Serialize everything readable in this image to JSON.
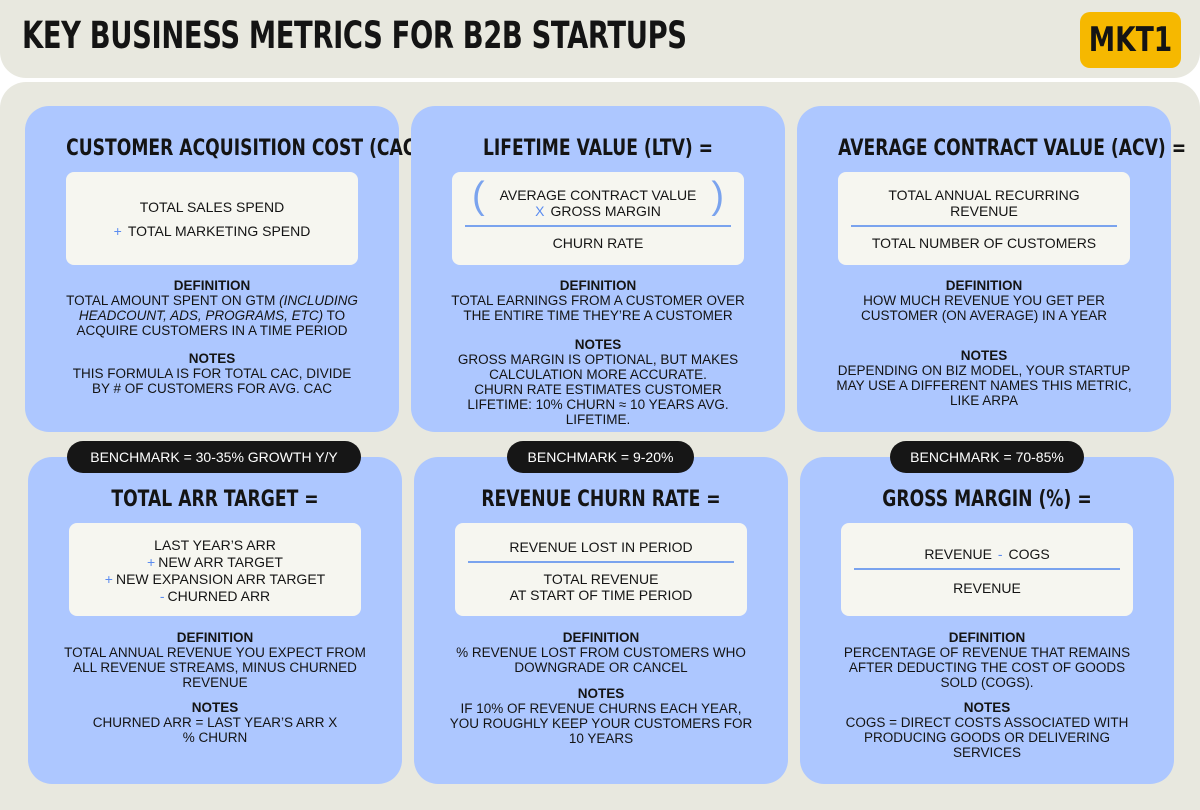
{
  "header": {
    "title": "KEY BUSINESS METRICS FOR B2B STARTUPS",
    "brand": "MKT1"
  },
  "colors": {
    "background": "#e8e8df",
    "card": "#adc7ff",
    "formula_box": "#f6f6f0",
    "accent_operator": "#5b8cf0",
    "brand_badge": "#f6b800",
    "benchmark_pill": "#161616"
  },
  "cards": [
    {
      "title": "CUSTOMER ACQUISITION COST (CAC) =",
      "formula": [
        "TOTAL SALES SPEND",
        "TOTAL MARKETING SPEND"
      ],
      "formula_op": "+",
      "definition_label": "DEFINITION",
      "definition_lines": [
        "TOTAL AMOUNT SPENT ON GTM",
        "(INCLUDING",
        "HEADCOUNT, ADS, PROGRAMS, ETC)",
        "TO",
        "ACQUIRE CUSTOMERS IN A TIME PERIOD"
      ],
      "notes_label": "NOTES",
      "notes_lines": [
        "THIS FORMULA IS FOR TOTAL CAC, DIVIDE",
        "BY # OF CUSTOMERS FOR AVG. CAC"
      ]
    },
    {
      "title": "LIFETIME VALUE (LTV) =",
      "numerator": [
        "AVERAGE CONTRACT VALUE",
        "GROSS MARGIN"
      ],
      "numerator_op": "X",
      "paren_left": "(",
      "paren_right": ")",
      "denominator": "CHURN RATE",
      "definition_label": "DEFINITION",
      "definition_lines": [
        "TOTAL EARNINGS FROM A CUSTOMER OVER",
        "THE ENTIRE TIME THEY’RE A CUSTOMER"
      ],
      "notes_label": "NOTES",
      "notes_lines": [
        "GROSS MARGIN IS OPTIONAL, BUT MAKES",
        "CALCULATION MORE ACCURATE.",
        "CHURN RATE ESTIMATES CUSTOMER",
        "LIFETIME: 10% CHURN ≈ 10 YEARS AVG.",
        "LIFETIME."
      ]
    },
    {
      "title": "AVERAGE CONTRACT VALUE (ACV) =",
      "numerator": [
        "TOTAL ANNUAL RECURRING",
        "REVENUE"
      ],
      "denominator": "TOTAL NUMBER OF CUSTOMERS",
      "definition_label": "DEFINITION",
      "definition_lines": [
        "HOW MUCH REVENUE YOU GET PER",
        "CUSTOMER (ON AVERAGE) IN A YEAR"
      ],
      "notes_label": "NOTES",
      "notes_lines": [
        "DEPENDING ON BIZ MODEL, YOUR STARTUP",
        "MAY USE A DIFFERENT NAMES THIS METRIC,",
        "LIKE ARPA"
      ]
    },
    {
      "title": "TOTAL ARR TARGET =",
      "formula": [
        "LAST YEAR’S ARR",
        "NEW ARR TARGET",
        "NEW EXPANSION ARR TARGET",
        "CHURNED ARR"
      ],
      "formula_ops": [
        "",
        "+",
        "+",
        "-"
      ],
      "definition_label": "DEFINITION",
      "definition_lines": [
        "TOTAL ANNUAL REVENUE YOU EXPECT FROM",
        "ALL REVENUE STREAMS, MINUS CHURNED",
        "REVENUE"
      ],
      "notes_label": "NOTES",
      "notes_lines": [
        "CHURNED ARR = LAST YEAR’S ARR X",
        "% CHURN"
      ]
    },
    {
      "title": "REVENUE CHURN RATE =",
      "numerator": [
        "REVENUE LOST IN PERIOD"
      ],
      "denominator_lines": [
        "TOTAL REVENUE",
        "AT START OF TIME PERIOD"
      ],
      "definition_label": "DEFINITION",
      "definition_lines": [
        "% REVENUE LOST FROM CUSTOMERS WHO",
        "DOWNGRADE OR CANCEL"
      ],
      "notes_label": "NOTES",
      "notes_lines": [
        "IF 10% OF REVENUE CHURNS EACH YEAR,",
        "YOU ROUGHLY KEEP YOUR CUSTOMERS FOR",
        "10 YEARS"
      ]
    },
    {
      "title": "GROSS MARGIN (%) =",
      "numerator_parts": [
        "REVENUE",
        "-",
        "COGS"
      ],
      "denominator": "REVENUE",
      "definition_label": "DEFINITION",
      "definition_lines": [
        "PERCENTAGE OF REVENUE THAT REMAINS",
        "AFTER DEDUCTING THE COST OF GOODS",
        "SOLD (COGS)."
      ],
      "notes_label": "NOTES",
      "notes_lines": [
        "COGS = DIRECT COSTS ASSOCIATED WITH",
        "PRODUCING GOODS OR DELIVERING",
        "SERVICES"
      ]
    }
  ],
  "benchmarks": [
    "BENCHMARK = 30-35% GROWTH Y/Y",
    "BENCHMARK = 9-20%",
    "BENCHMARK = 70-85%"
  ]
}
